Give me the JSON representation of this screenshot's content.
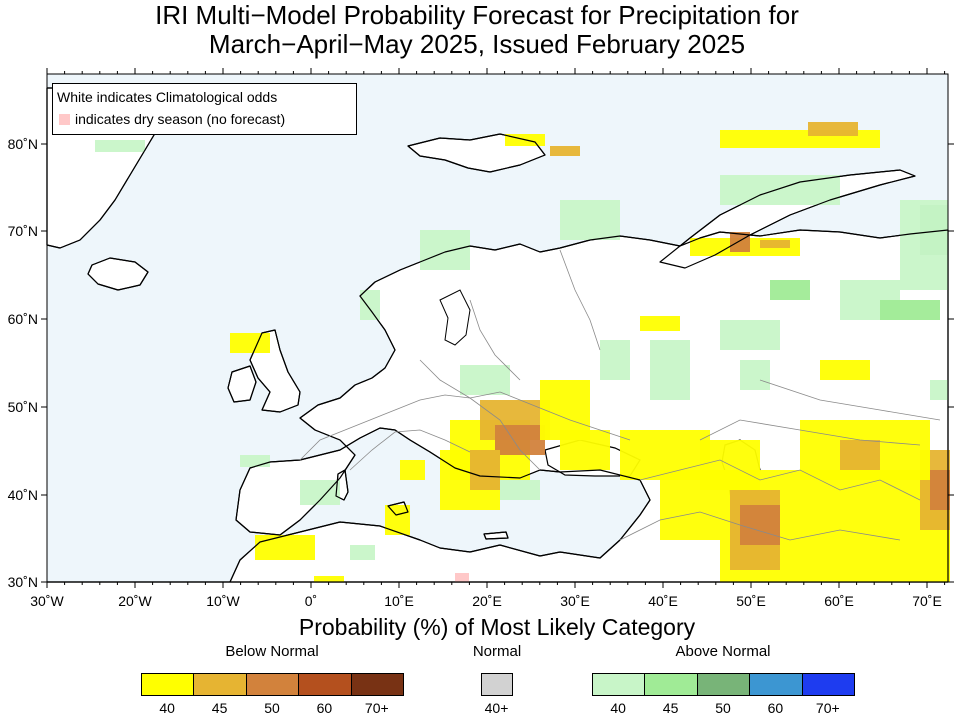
{
  "title": {
    "line1": "IRI Multi−Model Probability Forecast for Precipitation for",
    "line2": "March−April−May 2025, Issued February 2025"
  },
  "notes": {
    "line1": "White indicates Climatological odds",
    "line2": "indicates dry season (no forecast)",
    "dry_color": "#ffc8c8"
  },
  "axes": {
    "lat_labels": [
      "80˚N",
      "70˚N",
      "60˚N",
      "50˚N",
      "40˚N",
      "30˚N"
    ],
    "lon_labels": [
      "30˚W",
      "20˚W",
      "10˚W",
      "0˚",
      "10˚E",
      "20˚E",
      "30˚E",
      "40˚E",
      "50˚E",
      "60˚E",
      "70˚E"
    ]
  },
  "legend": {
    "title": "Probability (%) of Most Likely Category",
    "below": {
      "label": "Below Normal",
      "colors": [
        "#ffff00",
        "#e6b432",
        "#d2823c",
        "#b4501e",
        "#783214"
      ],
      "ticks": [
        "40",
        "45",
        "50",
        "60",
        "70+"
      ]
    },
    "normal": {
      "label": "Normal",
      "colors": [
        "#d2d2d2"
      ],
      "ticks": [
        "40+"
      ]
    },
    "above": {
      "label": "Above Normal",
      "colors": [
        "#c8f5c8",
        "#a0eb96",
        "#78b478",
        "#3c96d2",
        "#1e3cf0"
      ],
      "ticks": [
        "40",
        "45",
        "50",
        "60",
        "70+"
      ]
    }
  },
  "colors": {
    "ocean": "#eef6fb",
    "land": "#ffffff",
    "coast": "#000000",
    "border": "#8a8a8a"
  }
}
